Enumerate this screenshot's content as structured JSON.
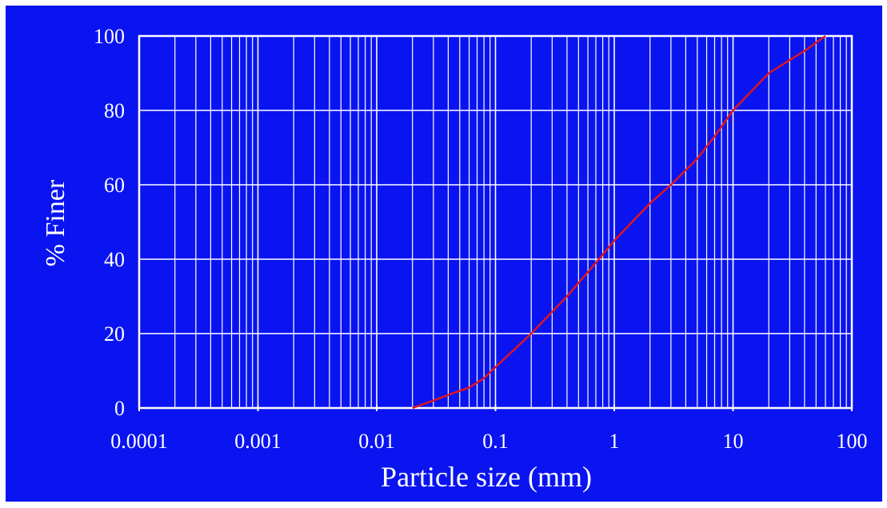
{
  "colors": {
    "background": "#0a14f0",
    "grid": "#ffffff",
    "text": "#ffffff",
    "curve": "#e0141e"
  },
  "chart_data": {
    "type": "line",
    "xlabel": "Particle size (mm)",
    "ylabel": "% Finer",
    "x_scale": "log",
    "xlim": [
      0.0001,
      100
    ],
    "ylim": [
      0,
      100
    ],
    "x_ticks": [
      "0.0001",
      "0.001",
      "0.01",
      "0.1",
      "1",
      "10",
      "100"
    ],
    "y_ticks": [
      "0",
      "20",
      "40",
      "60",
      "80",
      "100"
    ],
    "grid": true,
    "series": [
      {
        "x": [
          0.02,
          0.03,
          0.04,
          0.06,
          0.08,
          0.1,
          0.2,
          0.4,
          0.7,
          1,
          2,
          3,
          5,
          7,
          10,
          20,
          40,
          60
        ],
        "y": [
          0,
          2,
          3.5,
          5.5,
          8,
          11,
          20,
          30,
          39,
          45,
          55,
          60,
          67,
          73,
          80,
          90,
          96,
          100
        ]
      }
    ]
  }
}
